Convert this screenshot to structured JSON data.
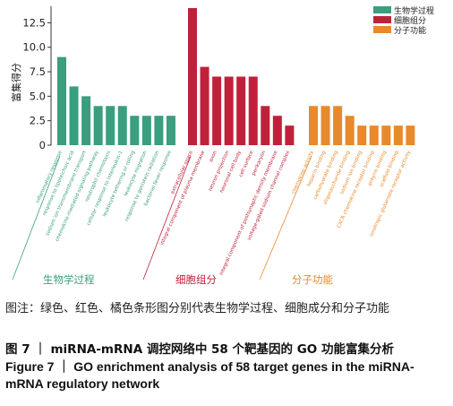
{
  "chart_data": {
    "type": "bar",
    "ylabel": "富集得分",
    "ylim": [
      0,
      14
    ],
    "yticks": [
      0,
      2.5,
      5.0,
      7.5,
      10.0,
      12.5
    ],
    "ytick_labels": [
      "0",
      "2.5",
      "5.0",
      "7.5",
      "10.0",
      "12.5"
    ],
    "legend_position": "top-right",
    "groups": [
      {
        "name": "生物学过程",
        "color": "#3a9e7f",
        "categories": [
          "inflammatory response",
          "response to lipoteichoic acid",
          "sodium ion transmembrane transport",
          "chemokine-mediated signaling pathway",
          "neutrophil chemotaxis",
          "cellular response to interleukin-1",
          "leukocyte tethering or rolling",
          "leukocyte migration",
          "response to genistein radiation",
          "bacterial fever response"
        ],
        "values": [
          9,
          6,
          5,
          4,
          4,
          4,
          3,
          3,
          3,
          3
        ]
      },
      {
        "name": "细胞组分",
        "color": "#c0213a",
        "categories": [
          "extracellular space",
          "integral component of plasma membrane",
          "axon",
          "neuron projection",
          "neuronal cell body",
          "cell surface",
          "perikaryon",
          "integral component of postsynaptic density membrane",
          "voltage-gated sodium channel complex"
        ],
        "values": [
          14,
          8,
          7,
          7,
          7,
          7,
          4,
          3,
          2
        ]
      },
      {
        "name": "分子功能",
        "color": "#e8892c",
        "categories": [
          "chemokine activity",
          "heparin binding",
          "carbohydrate binding",
          "oligosaccharide binding",
          "sodium ion binding",
          "CXCR chemokine receptor binding",
          "ankyrin binding",
          "scaffold binding",
          "ionotropic glutamate receptor activity"
        ],
        "values": [
          4,
          4,
          4,
          3,
          2,
          2,
          2,
          2,
          2
        ]
      }
    ]
  },
  "caption": {
    "note": "图注：绿色、红色、橘色条形图分别代表生物学过程、细胞成分和分子功能",
    "figure_cn": "图 7 ｜ miRNA-mRNA 调控网络中 58 个靶基因的 GO 功能富集分析",
    "figure_en": "Figure 7 ｜ GO enrichment analysis of 58 target genes in the miRNA-mRNA regulatory network"
  }
}
